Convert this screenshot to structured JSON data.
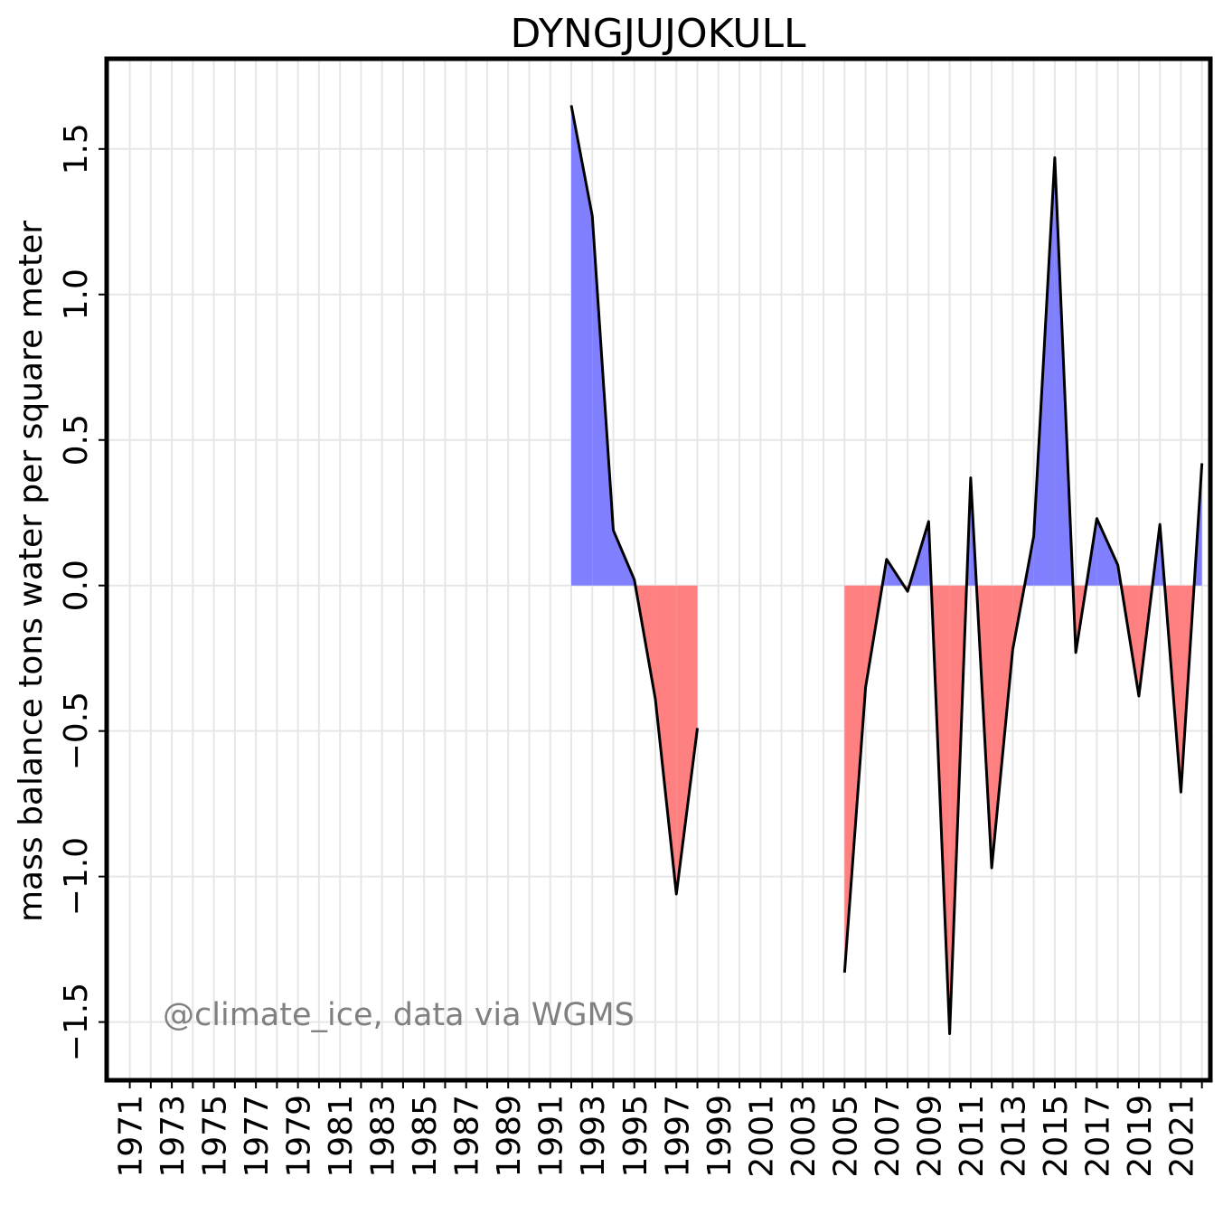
{
  "chart_data": {
    "type": "area",
    "title": "DYNGJUJOKULL",
    "xlabel": "",
    "ylabel": "mass balance tons water per square meter",
    "annotation": "@climate_ice, data via WGMS",
    "xlim": [
      1969.9,
      2022.4
    ],
    "ylim": [
      -1.7,
      1.81
    ],
    "x_ticks": [
      1971,
      1972,
      1973,
      1974,
      1975,
      1976,
      1977,
      1978,
      1979,
      1980,
      1981,
      1982,
      1983,
      1984,
      1985,
      1986,
      1987,
      1988,
      1989,
      1990,
      1991,
      1992,
      1993,
      1994,
      1995,
      1996,
      1997,
      1998,
      1999,
      2000,
      2001,
      2002,
      2003,
      2004,
      2005,
      2006,
      2007,
      2008,
      2009,
      2010,
      2011,
      2012,
      2013,
      2014,
      2015,
      2016,
      2017,
      2018,
      2019,
      2020,
      2021,
      2022
    ],
    "x_tick_labels": [
      "1971",
      "1973",
      "1975",
      "1977",
      "1979",
      "1981",
      "1983",
      "1985",
      "1987",
      "1989",
      "1991",
      "1993",
      "1995",
      "1997",
      "1999",
      "2001",
      "2003",
      "2005",
      "2007",
      "2009",
      "2011",
      "2013",
      "2015",
      "2017",
      "2019",
      "2021"
    ],
    "y_ticks": [
      -1.5,
      -1.0,
      -0.5,
      0.0,
      0.5,
      1.0,
      1.5
    ],
    "y_tick_labels": [
      "−1.5",
      "−1.0",
      "−0.5",
      "0.0",
      "0.5",
      "1.0",
      "1.5"
    ],
    "grid": true,
    "colors": {
      "positive": "#8080ff",
      "negative": "#ff8080",
      "line": "#000000",
      "grid": "#e6e6e6"
    },
    "series": [
      {
        "segments": [
          {
            "x": [
              1992,
              1993,
              1994,
              1995,
              1996,
              1997,
              1998
            ],
            "y": [
              1.65,
              1.27,
              0.19,
              0.02,
              -0.39,
              -1.06,
              -0.49
            ]
          },
          {
            "x": [
              2005,
              2006,
              2007,
              2008,
              2009,
              2010,
              2011,
              2012,
              2013,
              2014,
              2015,
              2016,
              2017,
              2018,
              2019,
              2020,
              2021,
              2022
            ],
            "y": [
              -1.33,
              -0.35,
              0.09,
              -0.02,
              0.22,
              -1.54,
              0.37,
              -0.97,
              -0.22,
              0.17,
              1.47,
              -0.23,
              0.23,
              0.07,
              -0.38,
              0.21,
              -0.71,
              0.42
            ]
          }
        ]
      }
    ]
  }
}
